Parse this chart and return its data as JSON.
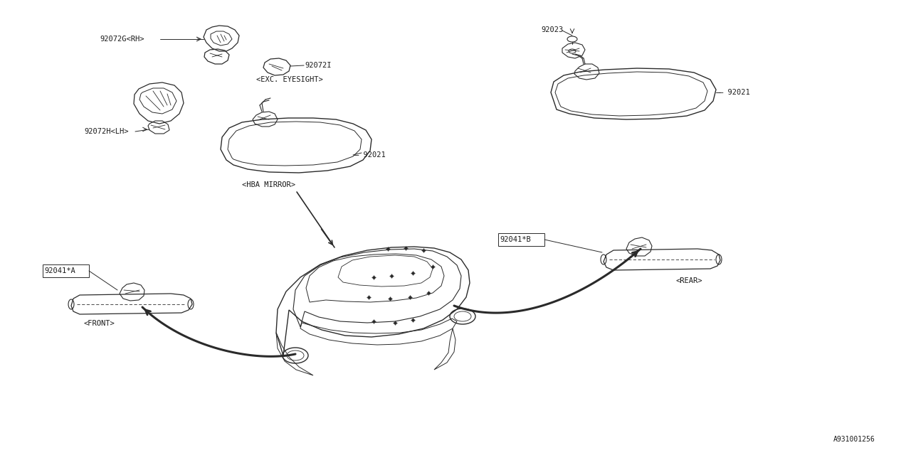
{
  "bg_color": "#ffffff",
  "line_color": "#2a2a2a",
  "text_color": "#1a1a1a",
  "font_family": "monospace",
  "label_font_size": 7.5,
  "figsize": [
    12.8,
    6.4
  ],
  "dpi": 100,
  "diagram_id": "A931001256",
  "parts": {
    "92072G_RH_label": "92072G<RH>",
    "92072H_LH_label": "92072H<LH>",
    "92072I_label": "92072I",
    "exc_eyesight": "<EXC. EYESIGHT>",
    "92021_hba": "92021",
    "hba_mirror_label": "<HBA MIRROR>",
    "92023_label": "92023",
    "92021_right": "92021",
    "92041A_label": "92041*A",
    "front_label": "<FRONT>",
    "92041B_label": "92041*B",
    "rear_label": "<REAR>"
  }
}
